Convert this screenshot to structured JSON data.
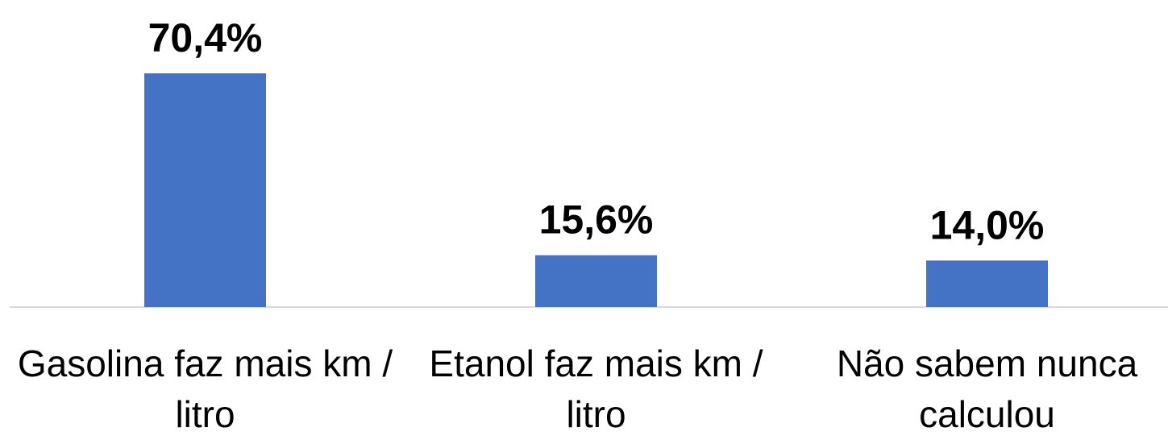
{
  "chart_data": {
    "type": "bar",
    "categories": [
      "Gasolina faz mais km / litro",
      "Etanol faz mais km / litro",
      "Não sabem nunca calculou"
    ],
    "values": [
      70.4,
      15.6,
      14.0
    ],
    "value_labels": [
      "70,4%",
      "15,6%",
      "14,0%"
    ],
    "color": "#4472c4"
  }
}
